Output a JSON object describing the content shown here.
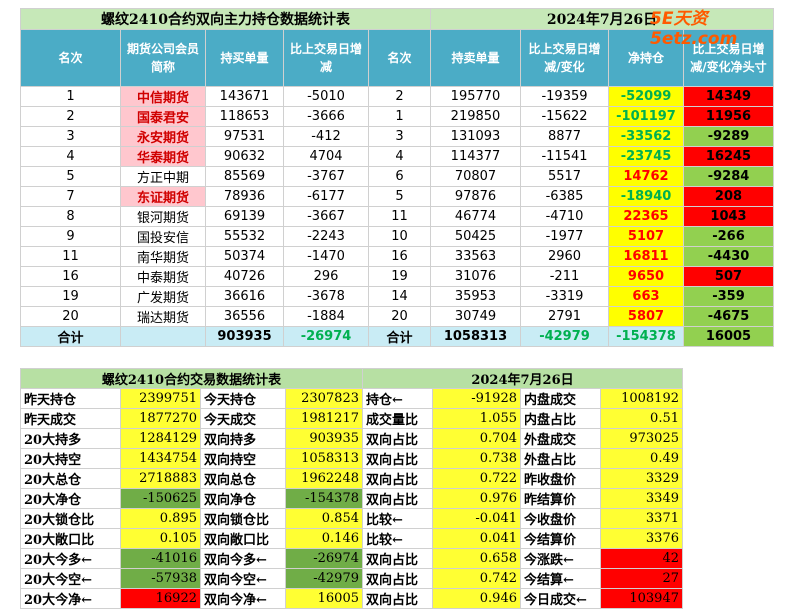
{
  "header": {
    "title": "螺纹2410合约双向主力持仓数据统计表",
    "date": "2024年7月26日",
    "watermark": "5E天资5etz.com"
  },
  "table": {
    "columns": [
      "名次",
      "期货公司会员简称",
      "持买单量",
      "比上交易日增减",
      "名次",
      "持卖单量",
      "比上交易日增减/变化",
      "净持仓",
      "比上交易日增减/变化净头寸"
    ],
    "rows": [
      [
        1,
        "中信期货",
        143671,
        -5010,
        2,
        195770,
        -19359,
        -52099,
        14349
      ],
      [
        2,
        "国泰君安",
        118653,
        -3666,
        1,
        219850,
        -15622,
        -101197,
        11956
      ],
      [
        3,
        "永安期货",
        97531,
        -412,
        3,
        131093,
        8877,
        -33562,
        -9289
      ],
      [
        4,
        "华泰期货",
        90632,
        4704,
        4,
        114377,
        -11541,
        -23745,
        16245
      ],
      [
        5,
        "方正中期",
        85569,
        -3767,
        6,
        70807,
        5517,
        14762,
        -9284
      ],
      [
        7,
        "东证期货",
        78936,
        -6177,
        5,
        97876,
        -6385,
        -18940,
        208
      ],
      [
        8,
        "银河期货",
        69139,
        -3667,
        11,
        46774,
        -4710,
        22365,
        1043
      ],
      [
        9,
        "国投安信",
        55532,
        -2243,
        10,
        50425,
        -1977,
        5107,
        -266
      ],
      [
        11,
        "南华期货",
        50374,
        -1470,
        16,
        33563,
        2960,
        16811,
        -4430
      ],
      [
        16,
        "中泰期货",
        40726,
        296,
        19,
        31076,
        -211,
        9650,
        507
      ],
      [
        19,
        "广发期货",
        36616,
        -3678,
        14,
        35953,
        -3319,
        663,
        -359
      ],
      [
        20,
        "瑞达期货",
        36556,
        -1884,
        20,
        30749,
        2791,
        5807,
        -4675
      ]
    ],
    "total": [
      "合计",
      null,
      903935,
      -26974,
      "合计",
      1058313,
      -42979,
      -154378,
      16005
    ]
  },
  "summary": {
    "title": "螺纹2410合约交易数据统计表",
    "date": "2024年7月26日",
    "rows": [
      [
        "昨天持仓",
        2399751,
        "今天持仓",
        2307823,
        "持仓←",
        -91928,
        "内盘成交",
        1008192
      ],
      [
        "昨天成交",
        1877270,
        "今天成交",
        1981217,
        "成交量比",
        1.055,
        "内盘占比",
        0.51
      ],
      [
        "20大持多",
        1284129,
        "双向持多",
        903935,
        "双向占比",
        0.704,
        "外盘成交",
        973025
      ],
      [
        "20大持空",
        1434754,
        "双向持空",
        1058313,
        "双向占比",
        0.738,
        "外盘占比",
        0.49
      ],
      [
        "20大总仓",
        2718883,
        "双向总仓",
        1962248,
        "双向占比",
        0.722,
        "昨收盘价",
        3329
      ],
      [
        "20大净仓",
        -150625,
        "双向净仓",
        -154378,
        "双向占比",
        0.976,
        "昨结算价",
        3349
      ],
      [
        "20大锁仓比",
        0.895,
        "双向锁仓比",
        0.854,
        "比较←",
        -0.041,
        "今收盘价",
        3371
      ],
      [
        "20大敞口比",
        0.105,
        "双向敞口比",
        0.146,
        "比较←",
        0.041,
        "今结算价",
        3376
      ],
      [
        "20大今多←",
        -41016,
        "双向今多←",
        -26974,
        "双向占比",
        0.658,
        "今涨跌←",
        42
      ],
      [
        "20大今空←",
        -57938,
        "双向今空←",
        -42979,
        "双向占比",
        0.742,
        "今结算←",
        27
      ],
      [
        "20大今净←",
        16922,
        "双向今净←",
        16005,
        "双向占比",
        0.946,
        "今日成交←",
        103947
      ]
    ]
  }
}
